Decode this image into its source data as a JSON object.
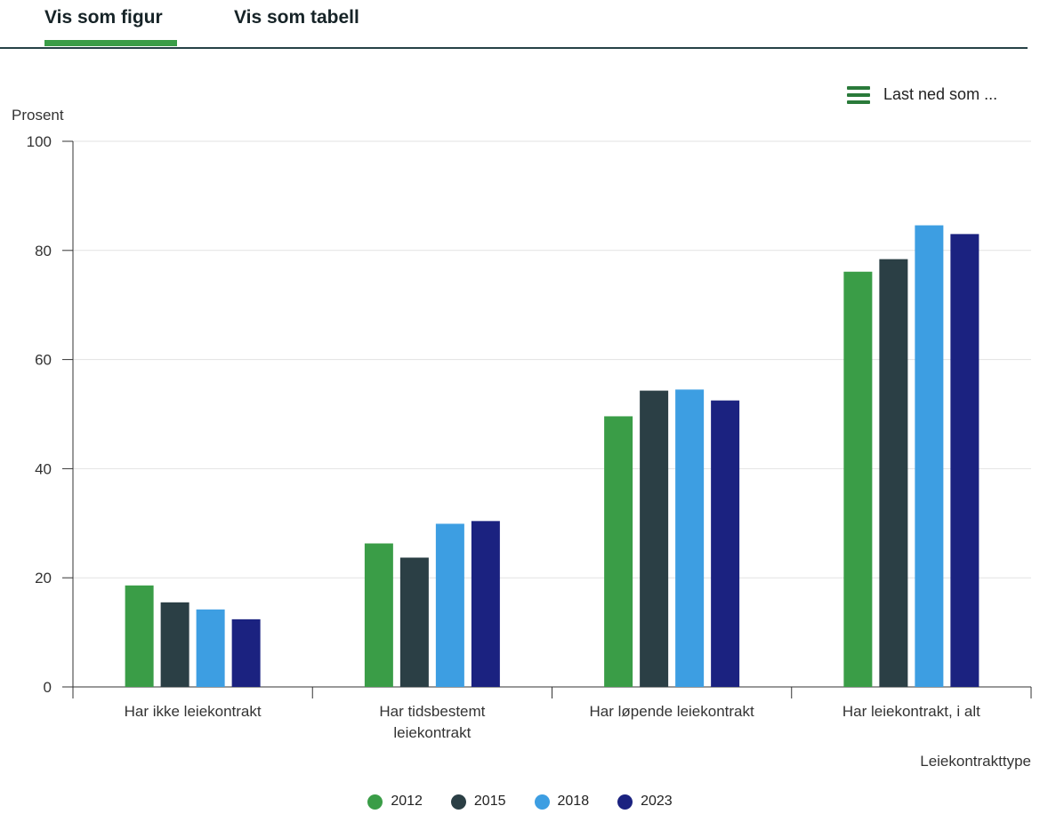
{
  "tabs": [
    {
      "label": "Vis som figur"
    },
    {
      "label": "Vis som tabell"
    }
  ],
  "download": {
    "label": "Last ned som ...",
    "icon": "menu-icon"
  },
  "chart_data": {
    "type": "bar",
    "title": "",
    "ylabel": "Prosent",
    "xlabel": "Leiekontrakttype",
    "ylim": [
      0,
      100
    ],
    "yticks": [
      0,
      20,
      40,
      60,
      80,
      100
    ],
    "grid": true,
    "legend_position": "bottom-center",
    "categories": [
      [
        "Har ikke leiekontrakt"
      ],
      [
        "Har tidsbestemt",
        "leiekontrakt"
      ],
      [
        "Har løpende leiekontrakt"
      ],
      [
        "Har leiekontrakt, i alt"
      ]
    ],
    "series": [
      {
        "name": "2012",
        "color": "#3a9d47",
        "values": [
          18.6,
          26.3,
          49.6,
          76.1
        ]
      },
      {
        "name": "2015",
        "color": "#2b3f45",
        "values": [
          15.5,
          23.7,
          54.3,
          78.4
        ]
      },
      {
        "name": "2018",
        "color": "#3d9ee2",
        "values": [
          14.2,
          29.9,
          54.5,
          84.6
        ]
      },
      {
        "name": "2023",
        "color": "#1b2280",
        "values": [
          12.4,
          30.4,
          52.5,
          83.0
        ]
      }
    ]
  }
}
